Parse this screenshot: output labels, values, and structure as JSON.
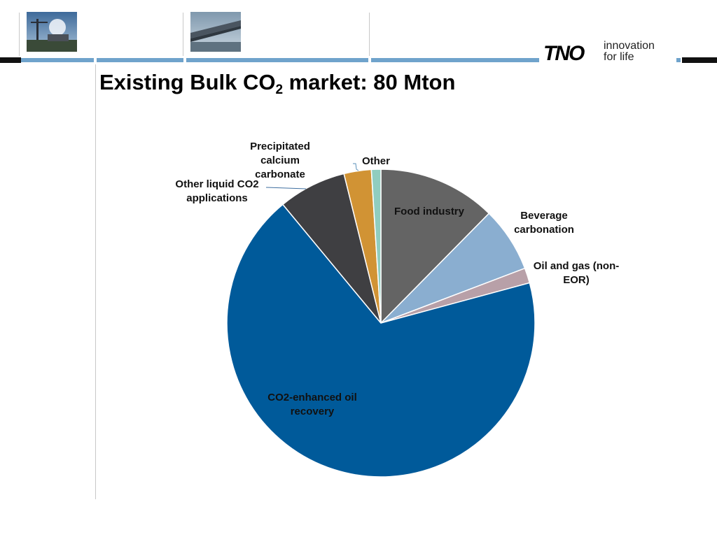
{
  "header": {
    "title_main": "Existing Bulk CO",
    "title_sub": "2",
    "title_rest": " market: 80 Mton",
    "logo_text": "TNO",
    "logo_tagline_1": "innovation",
    "logo_tagline_2": "for life"
  },
  "colors": {
    "band_blue": "#6fa3cc",
    "band_black": "#111111",
    "eor": "#005a9a",
    "food": "#646464",
    "beverage": "#8aaed0",
    "oil_gas": "#b8a0a8",
    "other": "#90cdbf",
    "pcc": "#d19334",
    "other_liquid": "#3f3f42"
  },
  "chart_data": {
    "type": "pie",
    "title": "Existing Bulk CO2 market: 80 Mton",
    "unit": "%",
    "slices": [
      {
        "label": "Food industry",
        "value": 12.5,
        "color": "#646464"
      },
      {
        "label": "Beverage carbonation",
        "value": 6.9,
        "color": "#8aaed0"
      },
      {
        "label": "Oil and gas (non-EOR)",
        "value": 1.6,
        "color": "#b8a0a8"
      },
      {
        "label": "CO2-enhanced oil recovery",
        "value": 68.9,
        "color": "#005a9a"
      },
      {
        "label": "Other liquid CO2 applications",
        "value": 7.2,
        "color": "#3f3f42"
      },
      {
        "label": "Precipitated calcium carbonate",
        "value": 2.9,
        "color": "#d19334"
      },
      {
        "label": "Other",
        "value": 1.0,
        "color": "#90cdbf"
      }
    ],
    "labels": {
      "food": [
        "Food industry"
      ],
      "beverage": [
        "Beverage",
        "carbonation"
      ],
      "oil_gas": [
        "Oil and gas (non-",
        "EOR)"
      ],
      "eor": [
        "CO2-enhanced oil",
        "recovery"
      ],
      "other_liquid": [
        "Other liquid CO2",
        "applications"
      ],
      "pcc": [
        "Precipitated",
        "calcium",
        "carbonate"
      ],
      "other": [
        "Other"
      ]
    }
  }
}
